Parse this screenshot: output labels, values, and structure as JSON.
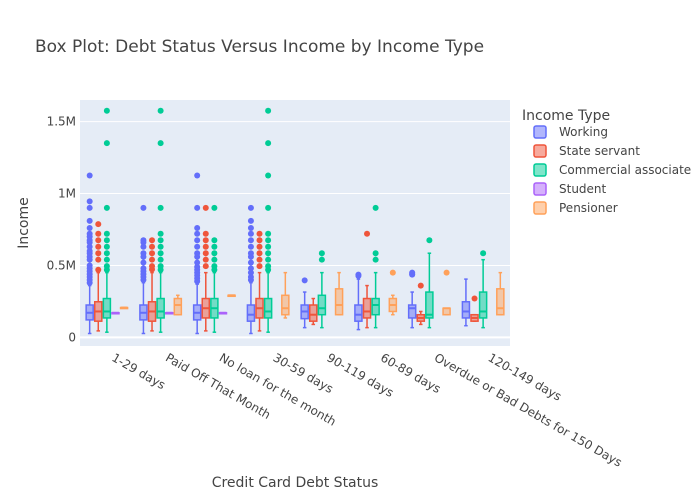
{
  "chart_data": {
    "type": "box",
    "title": "Box Plot: Debt Status Versus Income by Income Type",
    "xlabel": "Credit Card Debt Status",
    "ylabel": "Income",
    "ylim": [
      -60000,
      1650000
    ],
    "yticks": [
      0,
      500000,
      1000000,
      1500000
    ],
    "ytick_labels": [
      "0",
      "0.5M",
      "1M",
      "1.5M"
    ],
    "grid": true,
    "legend_position": "right",
    "legend_title": "Income Type",
    "categories": [
      "1-29 days",
      "Paid Off That Month",
      "No loan for the month",
      "30-59 days",
      "90-119 days",
      "60-89 days",
      "Overdue or Bad Debts for 150 Days",
      "120-149 days"
    ],
    "series": [
      {
        "name": "Working",
        "color": "#636efa",
        "boxes": [
          {
            "cat": 0,
            "min": 27000,
            "q1": 121500,
            "median": 171000,
            "q3": 225000,
            "max": 360000,
            "outliers": [
              380000,
              400000,
              420000,
              440000,
              460000,
              480000,
              500000,
              540000,
              560000,
              585000,
              600000,
              630000,
              660000,
              675000,
              700000,
              720000,
              760000,
              810000,
              900000,
              945000,
              1125000
            ]
          },
          {
            "cat": 1,
            "min": 27000,
            "q1": 121500,
            "median": 171000,
            "q3": 225000,
            "max": 380000,
            "outliers": [
              400000,
              420000,
              440000,
              460000,
              480000,
              520000,
              560000,
              585000,
              630000,
              660000,
              675000,
              900000
            ]
          },
          {
            "cat": 2,
            "min": 27000,
            "q1": 121500,
            "median": 171000,
            "q3": 225000,
            "max": 370000,
            "outliers": [
              390000,
              410000,
              430000,
              450000,
              470000,
              490000,
              520000,
              560000,
              585000,
              630000,
              675000,
              720000,
              760000,
              900000,
              1125000
            ]
          },
          {
            "cat": 3,
            "min": 27000,
            "q1": 112500,
            "median": 157500,
            "q3": 225000,
            "max": 380000,
            "outliers": [
              400000,
              420000,
              450000,
              480000,
              520000,
              560000,
              585000,
              630000,
              675000,
              720000,
              760000,
              810000,
              900000
            ]
          },
          {
            "cat": 4,
            "min": 67500,
            "q1": 130000,
            "median": 180000,
            "q3": 225000,
            "max": 315000,
            "outliers": [
              396000
            ]
          },
          {
            "cat": 5,
            "min": 54000,
            "q1": 112500,
            "median": 157500,
            "q3": 225000,
            "max": 405000,
            "outliers": [
              427500,
              436500
            ]
          },
          {
            "cat": 6,
            "min": 67500,
            "q1": 135000,
            "median": 202500,
            "q3": 225000,
            "max": 315000,
            "outliers": [
              436500,
              450000,
              441000
            ]
          },
          {
            "cat": 7,
            "min": 81000,
            "q1": 135000,
            "median": 180000,
            "q3": 247500,
            "max": 405000,
            "outliers": []
          }
        ]
      },
      {
        "name": "State servant",
        "color": "#ef553b",
        "boxes": [
          {
            "cat": 0,
            "min": 45000,
            "q1": 112500,
            "median": 180000,
            "q3": 247500,
            "max": 450000,
            "outliers": [
              470000,
              540000,
              585000,
              630000,
              675000,
              720000,
              787500
            ]
          },
          {
            "cat": 1,
            "min": 45000,
            "q1": 112500,
            "median": 180000,
            "q3": 247500,
            "max": 450000,
            "outliers": [
              472500,
              495000,
              540000,
              585000,
              630000,
              675000
            ]
          },
          {
            "cat": 2,
            "min": 45000,
            "q1": 135000,
            "median": 202500,
            "q3": 270000,
            "max": 450000,
            "outliers": [
              495000,
              540000,
              585000,
              630000,
              675000,
              720000,
              900000
            ]
          },
          {
            "cat": 3,
            "min": 45000,
            "q1": 135000,
            "median": 202500,
            "q3": 270000,
            "max": 450000,
            "outliers": [
              495000,
              540000,
              585000,
              630000,
              675000,
              720000
            ]
          },
          {
            "cat": 4,
            "min": 90000,
            "q1": 112500,
            "median": 157500,
            "q3": 225000,
            "max": 270000,
            "outliers": []
          },
          {
            "cat": 5,
            "min": 67500,
            "q1": 135000,
            "median": 180000,
            "q3": 270000,
            "max": 360000,
            "outliers": [
              720000
            ]
          },
          {
            "cat": 6,
            "min": 90000,
            "q1": 112500,
            "median": 135000,
            "q3": 157500,
            "max": 180000,
            "outliers": [
              360000
            ]
          },
          {
            "cat": 7,
            "min": 112500,
            "q1": 112500,
            "median": 135000,
            "q3": 157500,
            "max": 157500,
            "outliers": [
              270000
            ]
          }
        ]
      },
      {
        "name": "Commercial associate",
        "color": "#00cc96",
        "boxes": [
          {
            "cat": 0,
            "min": 36000,
            "q1": 135000,
            "median": 180000,
            "q3": 270000,
            "max": 450000,
            "outliers": [
              470000,
              495000,
              540000,
              585000,
              630000,
              675000,
              720000,
              900000,
              1350000,
              1575000
            ]
          },
          {
            "cat": 1,
            "min": 36000,
            "q1": 135000,
            "median": 180000,
            "q3": 270000,
            "max": 450000,
            "outliers": [
              470000,
              495000,
              540000,
              585000,
              630000,
              675000,
              720000,
              900000,
              1350000,
              1575000
            ]
          },
          {
            "cat": 2,
            "min": 36000,
            "q1": 135000,
            "median": 202500,
            "q3": 270000,
            "max": 450000,
            "outliers": [
              470000,
              495000,
              540000,
              585000,
              630000,
              675000,
              900000
            ]
          },
          {
            "cat": 3,
            "min": 36000,
            "q1": 135000,
            "median": 180000,
            "q3": 270000,
            "max": 450000,
            "outliers": [
              470000,
              495000,
              540000,
              585000,
              630000,
              675000,
              720000,
              900000,
              1125000,
              1350000,
              1575000
            ]
          },
          {
            "cat": 4,
            "min": 67500,
            "q1": 157500,
            "median": 202500,
            "q3": 292500,
            "max": 450000,
            "outliers": [
              540000,
              585000
            ]
          },
          {
            "cat": 5,
            "min": 67500,
            "q1": 157500,
            "median": 225000,
            "q3": 270000,
            "max": 450000,
            "outliers": [
              540000,
              585000,
              900000
            ]
          },
          {
            "cat": 6,
            "min": 67500,
            "q1": 135000,
            "median": 157500,
            "q3": 315000,
            "max": 585000,
            "outliers": [
              675000
            ]
          },
          {
            "cat": 7,
            "min": 67500,
            "q1": 135000,
            "median": 180000,
            "q3": 315000,
            "max": 540000,
            "outliers": [
              585000
            ]
          }
        ]
      },
      {
        "name": "Student",
        "color": "#ab63fa",
        "boxes": [
          {
            "cat": 0,
            "min": 171000,
            "q1": 171000,
            "median": 171000,
            "q3": 171000,
            "max": 171000,
            "outliers": []
          },
          {
            "cat": 1,
            "min": 171000,
            "q1": 171000,
            "median": 171000,
            "q3": 171000,
            "max": 171000,
            "outliers": []
          },
          {
            "cat": 2,
            "min": 171000,
            "q1": 171000,
            "median": 171000,
            "q3": 171000,
            "max": 171000,
            "outliers": []
          }
        ]
      },
      {
        "name": "Pensioner",
        "color": "#ffa15a",
        "boxes": [
          {
            "cat": 0,
            "min": 207000,
            "q1": 207000,
            "median": 207000,
            "q3": 207000,
            "max": 207000,
            "outliers": []
          },
          {
            "cat": 1,
            "min": 157500,
            "q1": 157500,
            "median": 225000,
            "q3": 270000,
            "max": 292500,
            "outliers": []
          },
          {
            "cat": 2,
            "min": 292500,
            "q1": 292500,
            "median": 292500,
            "q3": 292500,
            "max": 292500,
            "outliers": []
          },
          {
            "cat": 3,
            "min": 135000,
            "q1": 157500,
            "median": 202500,
            "q3": 292500,
            "max": 450000,
            "outliers": []
          },
          {
            "cat": 4,
            "min": 157500,
            "q1": 157500,
            "median": 225000,
            "q3": 337500,
            "max": 450000,
            "outliers": []
          },
          {
            "cat": 5,
            "min": 157500,
            "q1": 180000,
            "median": 225000,
            "q3": 270000,
            "max": 292500,
            "outliers": [
              450000
            ]
          },
          {
            "cat": 6,
            "min": 157500,
            "q1": 157500,
            "median": 202500,
            "q3": 202500,
            "max": 202500,
            "outliers": [
              450000
            ]
          },
          {
            "cat": 7,
            "min": 157500,
            "q1": 157500,
            "median": 202500,
            "q3": 337500,
            "max": 450000,
            "outliers": []
          }
        ]
      }
    ]
  }
}
